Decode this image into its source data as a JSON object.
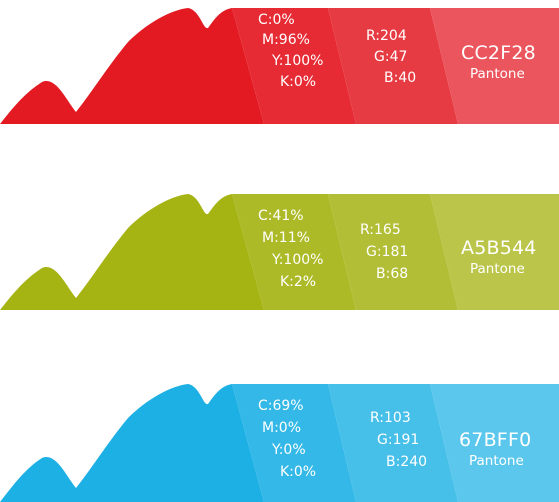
{
  "swatches": [
    {
      "colors": {
        "mountain": "#E41A22",
        "cmyk_panel": "#E62B34",
        "rgb_panel": "#E73B43",
        "hex_panel": "#EB555D"
      },
      "cmyk": [
        "C:0%",
        "M:96%",
        "Y:100%",
        "K:0%"
      ],
      "rgb": [
        "R:204",
        "G:47",
        "B:40"
      ],
      "hex": "CC2F28",
      "pantone": "Pantone"
    },
    {
      "colors": {
        "mountain": "#A5B313",
        "cmyk_panel": "#ADBA27",
        "rgb_panel": "#B2BE36",
        "hex_panel": "#BAC54A"
      },
      "cmyk": [
        "C:41%",
        "M:11%",
        "Y:100%",
        "K:2%"
      ],
      "rgb": [
        "R:165",
        "G:181",
        "B:68"
      ],
      "hex": "A5B544",
      "pantone": "Pantone"
    },
    {
      "colors": {
        "mountain": "#1DB0E4",
        "cmyk_panel": "#33B8E7",
        "rgb_panel": "#46BFE9",
        "hex_panel": "#5BC7EC"
      },
      "cmyk": [
        "C:69%",
        "M:0%",
        "Y:0%",
        "K:0%"
      ],
      "rgb": [
        "R:103",
        "G:191",
        "B:240"
      ],
      "hex": "67BFF0",
      "pantone": "Pantone"
    }
  ]
}
